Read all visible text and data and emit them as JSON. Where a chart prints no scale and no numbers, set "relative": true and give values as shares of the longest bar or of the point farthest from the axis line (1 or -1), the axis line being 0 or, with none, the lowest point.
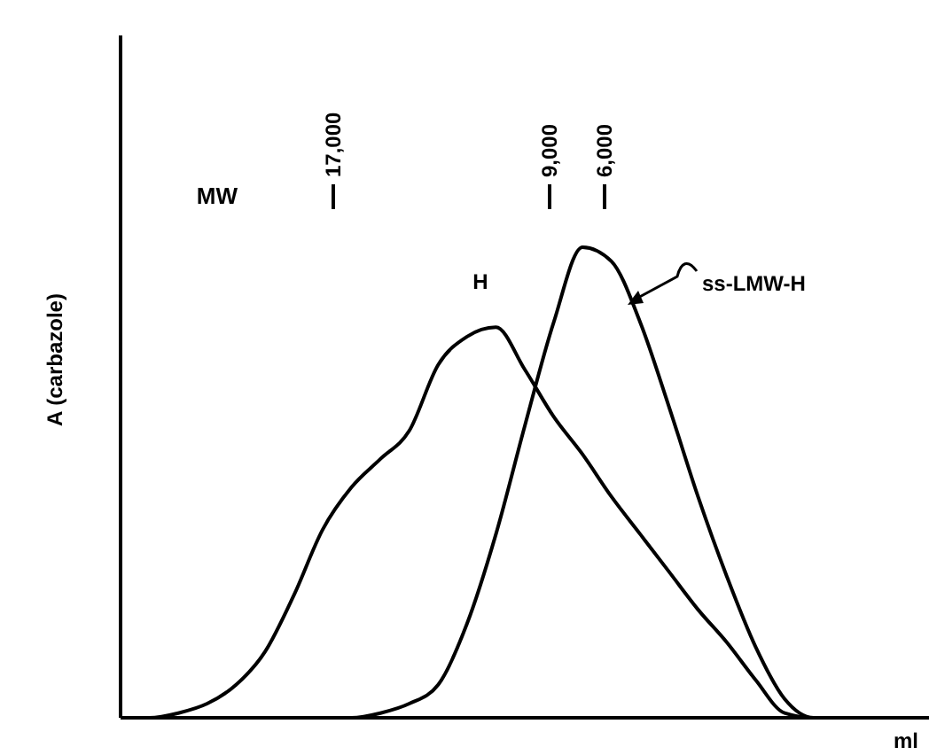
{
  "chart_data": {
    "type": "line",
    "relative": true,
    "xlabel": "ml",
    "ylabel": "A (carbazole)",
    "categories": [
      null,
      null,
      null,
      null,
      null,
      null,
      null,
      null,
      null,
      null,
      null,
      null,
      null,
      null,
      null,
      null,
      null,
      null,
      null,
      null,
      null,
      null,
      null,
      null,
      null,
      null,
      null,
      null,
      null
    ],
    "series": [
      {
        "name": "H",
        "color": "#000000",
        "values": [
          0,
          0,
          0.01,
          0.03,
          0.07,
          0.14,
          0.26,
          0.4,
          0.49,
          0.55,
          0.61,
          0.75,
          0.81,
          0.83,
          0.74,
          0.64,
          0.56,
          0.47,
          0.39,
          0.31,
          0.23,
          0.16,
          0.08,
          0.01,
          0,
          0,
          0,
          0,
          0
        ]
      },
      {
        "name": "ss-LMW-H",
        "color": "#000000",
        "values": [
          0,
          0,
          0,
          0,
          0,
          0,
          0,
          0,
          0,
          0.01,
          0.03,
          0.07,
          0.2,
          0.39,
          0.62,
          0.84,
          1,
          0.97,
          0.84,
          0.66,
          0.47,
          0.3,
          0.15,
          0.04,
          0,
          0,
          0,
          0,
          0
        ]
      }
    ],
    "annotations": [
      "MW",
      "17,000",
      "9,000",
      "6,000"
    ],
    "marker": "none",
    "line_style": "solid"
  }
}
